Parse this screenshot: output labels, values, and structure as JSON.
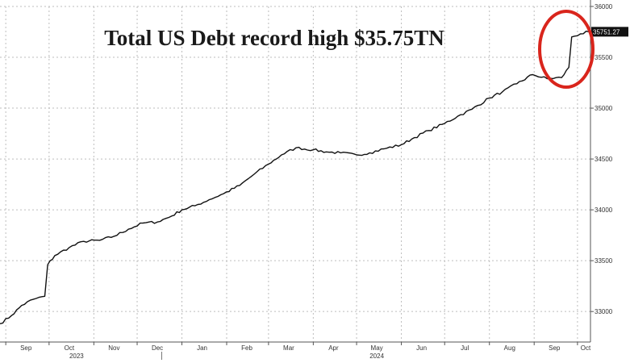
{
  "chart_data": {
    "type": "line",
    "title": "Total US Debt record high $35.75TN",
    "last_value_label": "35751.27",
    "ylim": [
      32700,
      36000
    ],
    "y_ticks": [
      {
        "value": 33000,
        "label": "33000"
      },
      {
        "value": 33500,
        "label": "33500"
      },
      {
        "value": 34000,
        "label": "34000"
      },
      {
        "value": 34500,
        "label": "34500"
      },
      {
        "value": 35000,
        "label": "35000"
      },
      {
        "value": 35500,
        "label": "35500"
      },
      {
        "value": 36000,
        "label": "36000"
      }
    ],
    "x_range": [
      "2023-08-28",
      "2024-10-10"
    ],
    "x_ticks": [
      {
        "date": "2023-09-01",
        "label": "Sep"
      },
      {
        "date": "2023-10-01",
        "label": "Oct"
      },
      {
        "date": "2023-11-01",
        "label": "Nov"
      },
      {
        "date": "2023-12-01",
        "label": "Dec"
      },
      {
        "date": "2024-01-01",
        "label": "Jan"
      },
      {
        "date": "2024-02-01",
        "label": "Feb"
      },
      {
        "date": "2024-03-01",
        "label": "Mar"
      },
      {
        "date": "2024-04-01",
        "label": "Apr"
      },
      {
        "date": "2024-05-01",
        "label": "May"
      },
      {
        "date": "2024-06-01",
        "label": "Jun"
      },
      {
        "date": "2024-07-01",
        "label": "Jul"
      },
      {
        "date": "2024-08-01",
        "label": "Aug"
      },
      {
        "date": "2024-09-01",
        "label": "Sep"
      },
      {
        "date": "2024-10-01",
        "label": "Oct"
      }
    ],
    "year_labels": [
      {
        "date": "2023-10-20",
        "label": "2023"
      },
      {
        "date": "2024-05-15",
        "label": "2024"
      }
    ],
    "grid": true,
    "y_axis_side": "right",
    "highlight": "last point circled in red",
    "colors": {
      "line": "#111111",
      "grid": "#bdbdbd",
      "highlight": "#d9251c",
      "label_box": "#111111"
    },
    "series": [
      {
        "points": [
          [
            "2023-08-28",
            32880
          ],
          [
            "2023-09-05",
            32960
          ],
          [
            "2023-09-12",
            33060
          ],
          [
            "2023-09-20",
            33120
          ],
          [
            "2023-09-28",
            33150
          ],
          [
            "2023-09-30",
            33460
          ],
          [
            "2023-10-05",
            33550
          ],
          [
            "2023-10-15",
            33630
          ],
          [
            "2023-10-25",
            33690
          ],
          [
            "2023-11-05",
            33700
          ],
          [
            "2023-11-15",
            33740
          ],
          [
            "2023-11-25",
            33810
          ],
          [
            "2023-12-05",
            33870
          ],
          [
            "2023-12-15",
            33880
          ],
          [
            "2023-12-25",
            33940
          ],
          [
            "2024-01-01",
            34000
          ],
          [
            "2024-01-10",
            34040
          ],
          [
            "2024-01-20",
            34100
          ],
          [
            "2024-01-30",
            34160
          ],
          [
            "2024-02-10",
            34240
          ],
          [
            "2024-02-20",
            34350
          ],
          [
            "2024-03-01",
            34450
          ],
          [
            "2024-03-10",
            34540
          ],
          [
            "2024-03-20",
            34610
          ],
          [
            "2024-04-01",
            34590
          ],
          [
            "2024-04-10",
            34570
          ],
          [
            "2024-04-20",
            34560
          ],
          [
            "2024-05-01",
            34540
          ],
          [
            "2024-05-10",
            34560
          ],
          [
            "2024-05-20",
            34600
          ],
          [
            "2024-06-01",
            34640
          ],
          [
            "2024-06-10",
            34710
          ],
          [
            "2024-06-20",
            34780
          ],
          [
            "2024-07-01",
            34850
          ],
          [
            "2024-07-10",
            34920
          ],
          [
            "2024-07-20",
            34990
          ],
          [
            "2024-08-01",
            35100
          ],
          [
            "2024-08-10",
            35160
          ],
          [
            "2024-08-20",
            35240
          ],
          [
            "2024-08-31",
            35330
          ],
          [
            "2024-09-10",
            35290
          ],
          [
            "2024-09-20",
            35300
          ],
          [
            "2024-09-25",
            35400
          ],
          [
            "2024-09-27",
            35700
          ],
          [
            "2024-10-03",
            35730
          ],
          [
            "2024-10-09",
            35751.27
          ]
        ]
      }
    ]
  }
}
